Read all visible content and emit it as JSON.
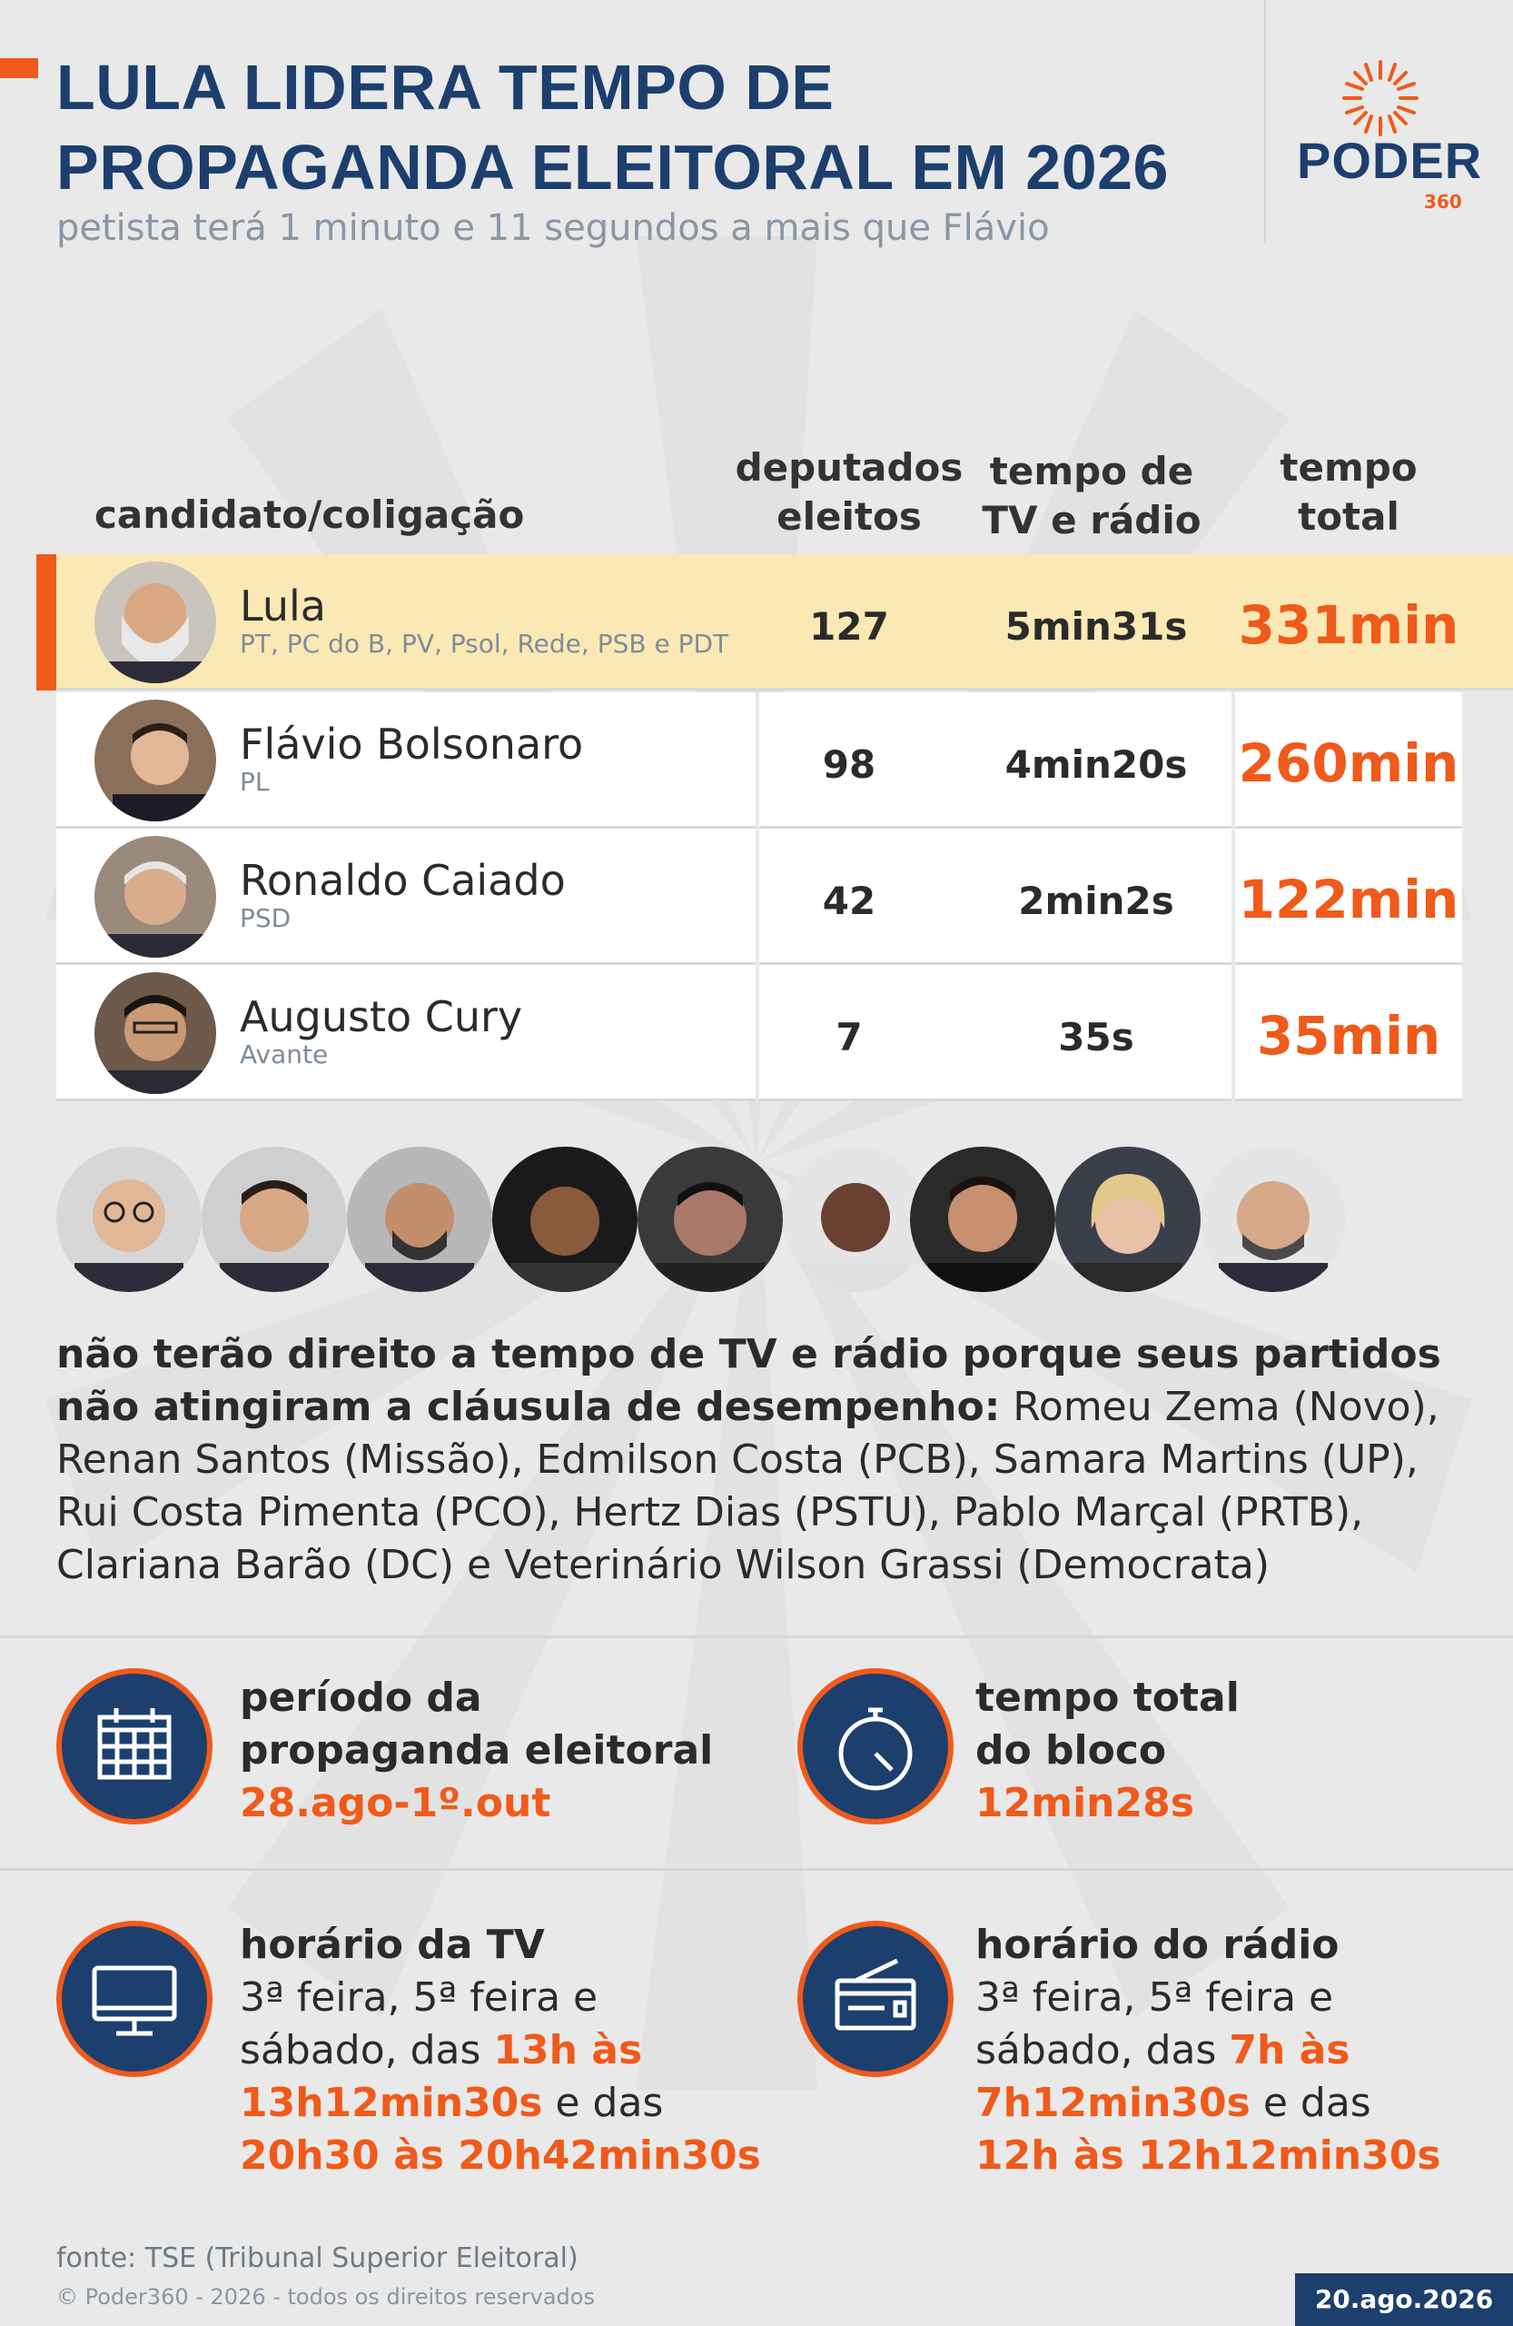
{
  "header": {
    "title_line1": "LULA LIDERA TEMPO DE",
    "title_line2": "PROPAGANDA ELEITORAL EM 2026",
    "subtitle": "petista terá 1 minuto e 11 segundos a mais que Flávio",
    "logo_main": "PODER",
    "logo_sub": "360"
  },
  "colors": {
    "accent": "#f05a1a",
    "navy": "#1c3f6e",
    "highlight": "#fbe9b5"
  },
  "table": {
    "headers": {
      "candidate": "candidato/coligação",
      "deputies_l1": "deputados",
      "deputies_l2": "eleitos",
      "tv_l1": "tempo de",
      "tv_l2": "TV e rádio",
      "total_l1": "tempo",
      "total_l2": "total"
    },
    "rows": [
      {
        "name": "Lula",
        "party": "PT, PC do B, PV, Psol, Rede, PSB e PDT",
        "deputies": "127",
        "tv_time": "5min31s",
        "total": "331min"
      },
      {
        "name": "Flávio Bolsonaro",
        "party": "PL",
        "deputies": "98",
        "tv_time": "4min20s",
        "total": "260min"
      },
      {
        "name": "Ronaldo Caiado",
        "party": "PSD",
        "deputies": "42",
        "tv_time": "2min2s",
        "total": "122min"
      },
      {
        "name": "Augusto Cury",
        "party": "Avante",
        "deputies": "7",
        "tv_time": "35s",
        "total": "35min"
      }
    ]
  },
  "excluded": {
    "bold": "não terão direito a tempo de TV e rádio porque seus partidos não atingiram a cláusula de desempenho:",
    "list": " Romeu Zema (Novo), Renan Santos (Missão), Edmilson Costa (PCB), Samara Martins (UP), Rui Costa Pimenta (PCO), Hertz Dias (PSTU), Pablo Marçal (PRTB), Clariana Barão (DC) e Veterinário Wilson Grassi (Democrata)"
  },
  "info": {
    "period": {
      "title_l1": "período da",
      "title_l2": "propaganda eleitoral",
      "value": "28.ago-1º.out",
      "icon": "calendar-icon"
    },
    "block": {
      "title_l1": "tempo total",
      "title_l2": "do bloco",
      "value": "12min28s",
      "icon": "stopwatch-icon"
    },
    "tv": {
      "title": "horário da TV",
      "l1": "3ª feira, 5ª feira e",
      "l2a": "sábado, das ",
      "l2b": "13h às",
      "l3a": "13h12min30s",
      "l3b": " e das",
      "l4": "20h30 às 20h42min30s",
      "icon": "monitor-icon"
    },
    "radio": {
      "title": "horário do rádio",
      "l1": "3ª feira, 5ª feira e",
      "l2a": "sábado, das ",
      "l2b": "7h às",
      "l3a": "7h12min30s",
      "l3b": " e das",
      "l4": "12h às 12h12min30s",
      "icon": "radio-icon"
    }
  },
  "footer": {
    "source": "fonte: TSE (Tribunal Superior Eleitoral)",
    "copyright": "© Poder360 - 2026 - todos os direitos reservados",
    "date": "20.ago.2026"
  }
}
